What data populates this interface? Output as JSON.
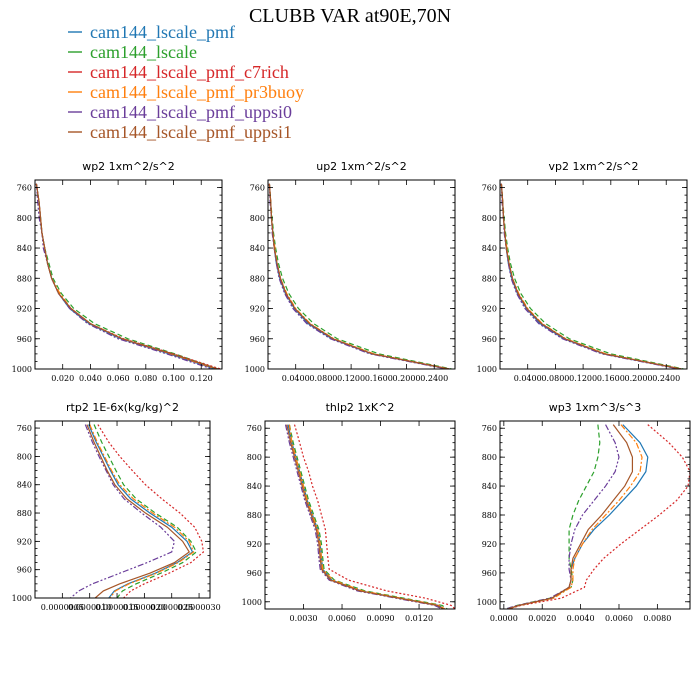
{
  "figure": {
    "title": "CLUBB VAR at90E,70N"
  },
  "legend": [
    {
      "name": "cam144_lscale_pmf",
      "color": "#1f77b4",
      "dash": "solid"
    },
    {
      "name": "cam144_lscale",
      "color": "#2ca02c",
      "dash": "dash"
    },
    {
      "name": "cam144_lscale_pmf_c7rich",
      "color": "#d62728",
      "dash": "dot"
    },
    {
      "name": "cam144_lscale_pmf_pr3buoy",
      "color": "#ff7f0e",
      "dash": "dashdot"
    },
    {
      "name": "cam144_lscale_pmf_uppsi0",
      "color": "#6a3d9a",
      "dash": "dashdotdot"
    },
    {
      "name": "cam144_lscale_pmf_uppsi1",
      "color": "#a65628",
      "dash": "solid"
    }
  ],
  "chart_data": [
    {
      "type": "line",
      "title": "wp2  1xm^2/s^2",
      "ylim": [
        1000,
        750
      ],
      "yticks": [
        760,
        800,
        840,
        880,
        920,
        960,
        1000
      ],
      "xlim": [
        0,
        0.135
      ],
      "xticks": [
        0.02,
        0.04,
        0.06,
        0.08,
        0.1,
        0.12
      ],
      "xticklabels": [
        "0.020",
        "0.040",
        "0.060",
        "0.080",
        "0.100",
        "0.120"
      ],
      "y": [
        755,
        780,
        800,
        820,
        840,
        860,
        880,
        900,
        920,
        940,
        960,
        980,
        1000
      ],
      "series": [
        {
          "name": "cam144_lscale_pmf",
          "values": [
            0.001,
            0.003,
            0.004,
            0.005,
            0.007,
            0.009,
            0.012,
            0.017,
            0.025,
            0.039,
            0.062,
            0.097,
            0.13
          ]
        },
        {
          "name": "cam144_lscale",
          "values": [
            0.001,
            0.003,
            0.004,
            0.005,
            0.007,
            0.01,
            0.013,
            0.019,
            0.028,
            0.043,
            0.067,
            0.101,
            0.132
          ]
        },
        {
          "name": "cam144_lscale_pmf_c7rich",
          "values": [
            0.001,
            0.003,
            0.004,
            0.005,
            0.007,
            0.009,
            0.012,
            0.017,
            0.026,
            0.04,
            0.064,
            0.1,
            0.134
          ]
        },
        {
          "name": "cam144_lscale_pmf_pr3buoy",
          "values": [
            0.001,
            0.003,
            0.004,
            0.005,
            0.007,
            0.009,
            0.012,
            0.018,
            0.026,
            0.04,
            0.063,
            0.098,
            0.131
          ]
        },
        {
          "name": "cam144_lscale_pmf_uppsi0",
          "values": [
            0.001,
            0.002,
            0.003,
            0.005,
            0.006,
            0.009,
            0.012,
            0.017,
            0.025,
            0.038,
            0.06,
            0.095,
            0.128
          ]
        },
        {
          "name": "cam144_lscale_pmf_uppsi1",
          "values": [
            0.001,
            0.003,
            0.004,
            0.005,
            0.007,
            0.009,
            0.012,
            0.017,
            0.026,
            0.04,
            0.063,
            0.099,
            0.132
          ]
        }
      ]
    },
    {
      "type": "line",
      "title": "up2  1xm^2/s^2",
      "ylim": [
        1000,
        750
      ],
      "yticks": [
        760,
        800,
        840,
        880,
        920,
        960,
        1000
      ],
      "xlim": [
        0,
        0.27
      ],
      "xticks": [
        0.04,
        0.08,
        0.12,
        0.16,
        0.2,
        0.24
      ],
      "xticklabels": [
        "0.0400",
        "0.0800",
        "0.1200",
        "0.1600",
        "0.2000",
        "0.2400"
      ],
      "y": [
        755,
        780,
        800,
        820,
        840,
        860,
        880,
        900,
        920,
        940,
        960,
        980,
        1000
      ],
      "series": [
        {
          "name": "cam144_lscale_pmf",
          "values": [
            0.002,
            0.004,
            0.005,
            0.007,
            0.009,
            0.012,
            0.017,
            0.025,
            0.038,
            0.058,
            0.092,
            0.15,
            0.26
          ]
        },
        {
          "name": "cam144_lscale",
          "values": [
            0.002,
            0.004,
            0.006,
            0.008,
            0.011,
            0.015,
            0.021,
            0.03,
            0.044,
            0.066,
            0.1,
            0.16,
            0.265
          ]
        },
        {
          "name": "cam144_lscale_pmf_c7rich",
          "values": [
            0.002,
            0.004,
            0.005,
            0.007,
            0.009,
            0.013,
            0.018,
            0.026,
            0.039,
            0.06,
            0.094,
            0.152,
            0.262
          ]
        },
        {
          "name": "cam144_lscale_pmf_pr3buoy",
          "values": [
            0.002,
            0.004,
            0.005,
            0.007,
            0.01,
            0.013,
            0.018,
            0.027,
            0.04,
            0.061,
            0.095,
            0.153,
            0.261
          ]
        },
        {
          "name": "cam144_lscale_pmf_uppsi0",
          "values": [
            0.002,
            0.003,
            0.005,
            0.006,
            0.009,
            0.012,
            0.016,
            0.024,
            0.036,
            0.056,
            0.09,
            0.147,
            0.258
          ]
        },
        {
          "name": "cam144_lscale_pmf_uppsi1",
          "values": [
            0.002,
            0.004,
            0.005,
            0.007,
            0.009,
            0.013,
            0.018,
            0.026,
            0.039,
            0.06,
            0.094,
            0.151,
            0.262
          ]
        }
      ]
    },
    {
      "type": "line",
      "title": "vp2  1xm^2/s^2",
      "ylim": [
        1000,
        750
      ],
      "yticks": [
        760,
        800,
        840,
        880,
        920,
        960,
        1000
      ],
      "xlim": [
        0,
        0.27
      ],
      "xticks": [
        0.04,
        0.08,
        0.12,
        0.16,
        0.2,
        0.24
      ],
      "xticklabels": [
        "0.0400",
        "0.0800",
        "0.1200",
        "0.1600",
        "0.2000",
        "0.2400"
      ],
      "y": [
        755,
        780,
        800,
        820,
        840,
        860,
        880,
        900,
        920,
        940,
        960,
        980,
        1000
      ],
      "series": [
        {
          "name": "cam144_lscale_pmf",
          "values": [
            0.002,
            0.004,
            0.005,
            0.007,
            0.009,
            0.012,
            0.017,
            0.025,
            0.038,
            0.058,
            0.092,
            0.15,
            0.26
          ]
        },
        {
          "name": "cam144_lscale",
          "values": [
            0.002,
            0.004,
            0.006,
            0.008,
            0.011,
            0.015,
            0.021,
            0.03,
            0.044,
            0.066,
            0.1,
            0.16,
            0.265
          ]
        },
        {
          "name": "cam144_lscale_pmf_c7rich",
          "values": [
            0.002,
            0.004,
            0.005,
            0.007,
            0.009,
            0.013,
            0.018,
            0.026,
            0.039,
            0.06,
            0.094,
            0.152,
            0.262
          ]
        },
        {
          "name": "cam144_lscale_pmf_pr3buoy",
          "values": [
            0.002,
            0.004,
            0.005,
            0.007,
            0.01,
            0.013,
            0.018,
            0.027,
            0.04,
            0.061,
            0.095,
            0.153,
            0.261
          ]
        },
        {
          "name": "cam144_lscale_pmf_uppsi0",
          "values": [
            0.002,
            0.003,
            0.005,
            0.006,
            0.009,
            0.012,
            0.016,
            0.024,
            0.036,
            0.056,
            0.09,
            0.147,
            0.258
          ]
        },
        {
          "name": "cam144_lscale_pmf_uppsi1",
          "values": [
            0.002,
            0.004,
            0.005,
            0.007,
            0.009,
            0.013,
            0.018,
            0.026,
            0.039,
            0.06,
            0.094,
            0.151,
            0.262
          ]
        }
      ]
    },
    {
      "type": "line",
      "title": "rtp2  1E-6x(kg/kg)^2",
      "ylim": [
        1000,
        750
      ],
      "yticks": [
        760,
        800,
        840,
        880,
        920,
        960,
        1000
      ],
      "xlim": [
        0,
        3.2e-06
      ],
      "xticks": [
        5e-07,
        1e-06,
        1.5e-06,
        2e-06,
        2.5e-06,
        3e-06
      ],
      "xticklabels": [
        "0.0000005",
        "0.0000010",
        "0.0000015",
        "0.0000020",
        "0.0000025",
        "0.0000030"
      ],
      "y": [
        755,
        780,
        800,
        820,
        840,
        860,
        880,
        900,
        920,
        935,
        950,
        965,
        980,
        990,
        1000
      ],
      "series": [
        {
          "name": "cam144_lscale_pmf",
          "values": [
            9.8e-07,
            1.12e-06,
            1.25e-06,
            1.38e-06,
            1.52e-06,
            1.75e-06,
            2.1e-06,
            2.5e-06,
            2.78e-06,
            2.88e-06,
            2.6e-06,
            2.2e-06,
            1.7e-06,
            1.45e-06,
            1.35e-06
          ]
        },
        {
          "name": "cam144_lscale",
          "values": [
            1.08e-06,
            1.22e-06,
            1.35e-06,
            1.48e-06,
            1.62e-06,
            1.85e-06,
            2.2e-06,
            2.6e-06,
            2.85e-06,
            2.95e-06,
            2.7e-06,
            2.3e-06,
            1.85e-06,
            1.6e-06,
            1.5e-06
          ]
        },
        {
          "name": "cam144_lscale_pmf_c7rich",
          "values": [
            1.15e-06,
            1.35e-06,
            1.55e-06,
            1.78e-06,
            2.02e-06,
            2.32e-06,
            2.65e-06,
            2.92e-06,
            3.05e-06,
            3.08e-06,
            2.85e-06,
            2.45e-06,
            2e-06,
            1.75e-06,
            1.62e-06
          ]
        },
        {
          "name": "cam144_lscale_pmf_pr3buoy",
          "values": [
            1e-06,
            1.14e-06,
            1.27e-06,
            1.4e-06,
            1.55e-06,
            1.8e-06,
            2.15e-06,
            2.55e-06,
            2.82e-06,
            2.9e-06,
            2.62e-06,
            2.22e-06,
            1.72e-06,
            1.47e-06,
            1.37e-06
          ]
        },
        {
          "name": "cam144_lscale_pmf_uppsi0",
          "values": [
            9.2e-07,
            1.05e-06,
            1.17e-06,
            1.3e-06,
            1.43e-06,
            1.63e-06,
            1.95e-06,
            2.3e-06,
            2.55e-06,
            2.5e-06,
            2.05e-06,
            1.55e-06,
            1.05e-06,
            8e-07,
            6.5e-07
          ]
        },
        {
          "name": "cam144_lscale_pmf_uppsi1",
          "values": [
            9.5e-07,
            1.08e-06,
            1.2e-06,
            1.32e-06,
            1.46e-06,
            1.68e-06,
            2.02e-06,
            2.42e-06,
            2.7e-06,
            2.82e-06,
            2.55e-06,
            2.1e-06,
            1.55e-06,
            1.25e-06,
            1.1e-06
          ]
        }
      ]
    },
    {
      "type": "line",
      "title": "thlp2  1xK^2",
      "ylim": [
        1010,
        750
      ],
      "yticks": [
        760,
        800,
        840,
        880,
        920,
        960,
        1000
      ],
      "xlim": [
        0,
        0.0148
      ],
      "xticks": [
        0.003,
        0.006,
        0.009,
        0.012
      ],
      "xticklabels": [
        "0.0030",
        "0.0060",
        "0.0090",
        "0.0120"
      ],
      "y": [
        755,
        780,
        800,
        820,
        840,
        860,
        880,
        900,
        920,
        940,
        955,
        970,
        985,
        995,
        1005,
        1010
      ],
      "series": [
        {
          "name": "cam144_lscale_pmf",
          "values": [
            0.0018,
            0.0021,
            0.0024,
            0.0027,
            0.003,
            0.0033,
            0.0037,
            0.0041,
            0.0043,
            0.0044,
            0.0045,
            0.0052,
            0.0075,
            0.0105,
            0.0135,
            0.014
          ]
        },
        {
          "name": "cam144_lscale",
          "values": [
            0.0019,
            0.0022,
            0.0025,
            0.0028,
            0.0031,
            0.0034,
            0.0038,
            0.0042,
            0.0044,
            0.0045,
            0.0046,
            0.0054,
            0.0078,
            0.0108,
            0.0138,
            0.0142
          ]
        },
        {
          "name": "cam144_lscale_pmf_c7rich",
          "values": [
            0.0023,
            0.0027,
            0.003,
            0.0034,
            0.0037,
            0.0041,
            0.0044,
            0.0047,
            0.0048,
            0.0049,
            0.005,
            0.0065,
            0.0095,
            0.0125,
            0.0145,
            0.0148
          ]
        },
        {
          "name": "cam144_lscale_pmf_pr3buoy",
          "values": [
            0.0019,
            0.0021,
            0.0024,
            0.0027,
            0.003,
            0.0033,
            0.0037,
            0.0041,
            0.0043,
            0.0044,
            0.0045,
            0.0053,
            0.0076,
            0.0106,
            0.0136,
            0.014
          ]
        },
        {
          "name": "cam144_lscale_pmf_uppsi0",
          "values": [
            0.0016,
            0.0019,
            0.0022,
            0.0025,
            0.0028,
            0.0031,
            0.0035,
            0.0039,
            0.0041,
            0.0042,
            0.0043,
            0.005,
            0.0072,
            0.0102,
            0.0132,
            0.0138
          ]
        },
        {
          "name": "cam144_lscale_pmf_uppsi1",
          "values": [
            0.0017,
            0.002,
            0.0023,
            0.0026,
            0.0029,
            0.0032,
            0.0036,
            0.004,
            0.0042,
            0.0043,
            0.0044,
            0.0051,
            0.0074,
            0.0104,
            0.0134,
            0.0139
          ]
        }
      ]
    },
    {
      "type": "line",
      "title": "wp3  1xm^3/s^3",
      "ylim": [
        1010,
        750
      ],
      "yticks": [
        760,
        800,
        840,
        880,
        920,
        960,
        1000
      ],
      "xlim": [
        -0.0002,
        0.0097
      ],
      "xticks": [
        0,
        0.002,
        0.004,
        0.006,
        0.008
      ],
      "xticklabels": [
        "0.0000",
        "0.0020",
        "0.0040",
        "0.0060",
        "0.0080"
      ],
      "y": [
        755,
        780,
        800,
        820,
        840,
        860,
        880,
        900,
        920,
        940,
        955,
        970,
        980,
        995,
        1005,
        1010
      ],
      "series": [
        {
          "name": "cam144_lscale_pmf",
          "values": [
            0.0062,
            0.0071,
            0.0075,
            0.0074,
            0.0069,
            0.0062,
            0.0055,
            0.0047,
            0.0041,
            0.0037,
            0.0035,
            0.0035,
            0.0034,
            0.0025,
            0.0008,
            0.0002
          ]
        },
        {
          "name": "cam144_lscale",
          "values": [
            0.0049,
            0.005,
            0.0049,
            0.0047,
            0.0043,
            0.0039,
            0.0036,
            0.0034,
            0.0034,
            0.0034,
            0.0035,
            0.0036,
            0.0035,
            0.0024,
            0.0007,
            0.0001
          ]
        },
        {
          "name": "cam144_lscale_pmf_c7rich",
          "values": [
            0.0075,
            0.0086,
            0.0093,
            0.0097,
            0.0096,
            0.009,
            0.0081,
            0.0071,
            0.0061,
            0.0052,
            0.0047,
            0.0043,
            0.0042,
            0.003,
            0.0009,
            0.0002
          ]
        },
        {
          "name": "cam144_lscale_pmf_pr3buoy",
          "values": [
            0.0061,
            0.0069,
            0.0072,
            0.0071,
            0.0066,
            0.006,
            0.0053,
            0.0046,
            0.0041,
            0.0037,
            0.0036,
            0.0036,
            0.0035,
            0.0026,
            0.0008,
            0.0002
          ]
        },
        {
          "name": "cam144_lscale_pmf_uppsi0",
          "values": [
            0.0053,
            0.0058,
            0.006,
            0.0058,
            0.0053,
            0.0047,
            0.0041,
            0.0037,
            0.0035,
            0.0034,
            0.0034,
            0.0035,
            0.0034,
            0.0024,
            0.0007,
            0.0001
          ]
        },
        {
          "name": "cam144_lscale_pmf_uppsi1",
          "values": [
            0.0057,
            0.0064,
            0.0067,
            0.0067,
            0.0063,
            0.0057,
            0.0051,
            0.0044,
            0.004,
            0.0036,
            0.0035,
            0.0035,
            0.0034,
            0.0025,
            0.0008,
            0.0002
          ]
        }
      ]
    }
  ]
}
